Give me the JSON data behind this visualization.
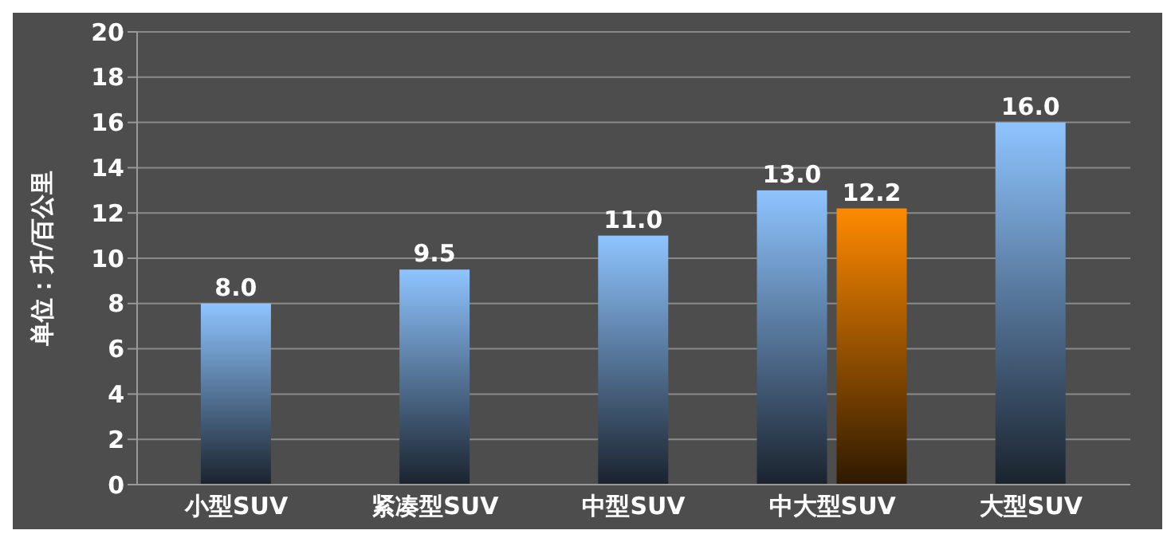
{
  "chart_data": {
    "type": "bar",
    "ylabel": "单位：升/百公里",
    "categories": [
      "小型SUV",
      "紧凑型SUV",
      "中型SUV",
      "中大型SUV",
      "大型SUV"
    ],
    "series": [
      {
        "color": "#8ec4ff",
        "values": [
          8.0,
          9.5,
          11.0,
          13.0,
          16.0
        ],
        "value_labels": [
          "8.0",
          "9.5",
          "11.0",
          "13.0",
          "16.0"
        ]
      },
      {
        "color": "#ff8a00",
        "values": [
          null,
          null,
          null,
          12.2,
          null
        ],
        "value_labels": [
          null,
          null,
          null,
          "12.2",
          null
        ]
      }
    ],
    "ylim": [
      0,
      20
    ],
    "yticks": [
      0,
      2,
      4,
      6,
      8,
      10,
      12,
      14,
      16,
      18,
      20
    ],
    "grid": "y",
    "legend": false
  }
}
